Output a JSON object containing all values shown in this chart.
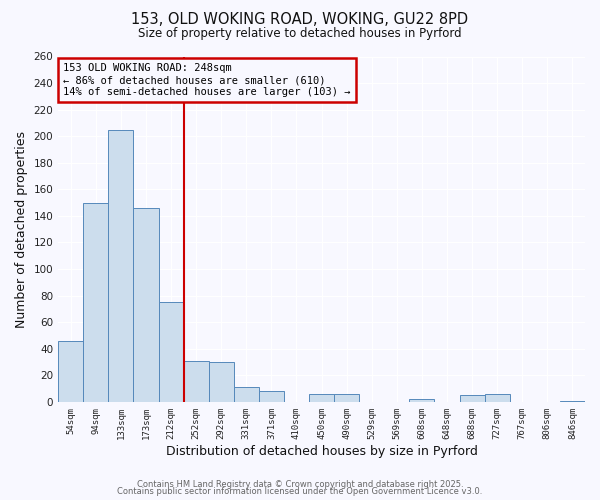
{
  "title": "153, OLD WOKING ROAD, WOKING, GU22 8PD",
  "subtitle": "Size of property relative to detached houses in Pyrford",
  "xlabel": "Distribution of detached houses by size in Pyrford",
  "ylabel": "Number of detached properties",
  "bar_labels": [
    "54sqm",
    "94sqm",
    "133sqm",
    "173sqm",
    "212sqm",
    "252sqm",
    "292sqm",
    "331sqm",
    "371sqm",
    "410sqm",
    "450sqm",
    "490sqm",
    "529sqm",
    "569sqm",
    "608sqm",
    "648sqm",
    "688sqm",
    "727sqm",
    "767sqm",
    "806sqm",
    "846sqm"
  ],
  "bar_values": [
    46,
    150,
    205,
    146,
    75,
    31,
    30,
    11,
    8,
    0,
    6,
    6,
    0,
    0,
    2,
    0,
    5,
    6,
    0,
    0,
    1
  ],
  "bar_color": "#ccdded",
  "bar_edge_color": "#5588bb",
  "ylim": [
    0,
    260
  ],
  "yticks": [
    0,
    20,
    40,
    60,
    80,
    100,
    120,
    140,
    160,
    180,
    200,
    220,
    240,
    260
  ],
  "vline_color": "#cc0000",
  "annotation_title": "153 OLD WOKING ROAD: 248sqm",
  "annotation_line1": "← 86% of detached houses are smaller (610)",
  "annotation_line2": "14% of semi-detached houses are larger (103) →",
  "annotation_box_color": "#cc0000",
  "background_color": "#f8f8ff",
  "grid_color": "#ffffff",
  "footer1": "Contains HM Land Registry data © Crown copyright and database right 2025.",
  "footer2": "Contains public sector information licensed under the Open Government Licence v3.0."
}
